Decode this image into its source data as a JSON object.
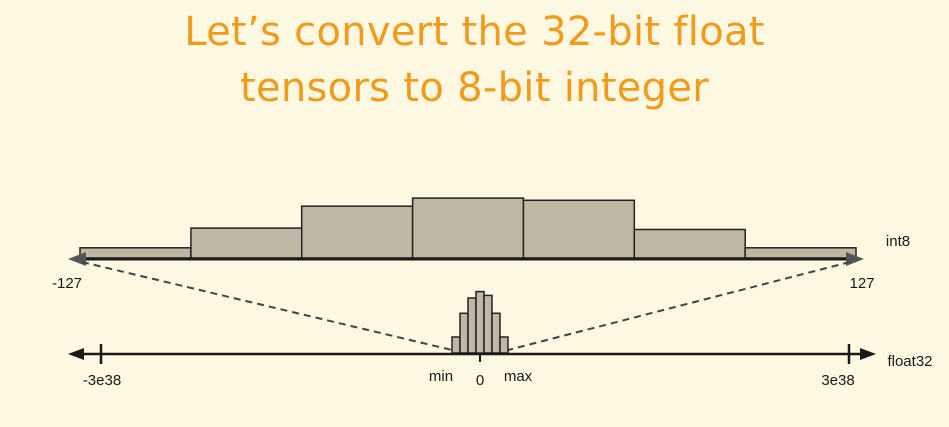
{
  "title_lines": [
    "Let’s convert the 32-bit float",
    "tensors to 8-bit integer"
  ],
  "int8_axis": {
    "name": "int8",
    "min_label": "-127",
    "max_label": "127"
  },
  "float32_axis": {
    "name": "float32",
    "min_label": "-3e38",
    "max_label": "3e38",
    "range_min_label": "min",
    "zero_label": "0",
    "range_max_label": "max"
  },
  "int8_histogram_relative_heights": [
    0.14,
    0.41,
    0.71,
    0.82,
    0.79,
    0.39,
    0.14
  ],
  "float32_histogram_relative_heights": [
    0.25,
    0.62,
    0.86,
    0.96,
    0.9,
    0.62,
    0.25
  ],
  "colors": {
    "title": "#f29a1a",
    "bar_fill": "#bdb7a3",
    "bar_stroke": "#222222",
    "background": "#fcf8e2"
  }
}
